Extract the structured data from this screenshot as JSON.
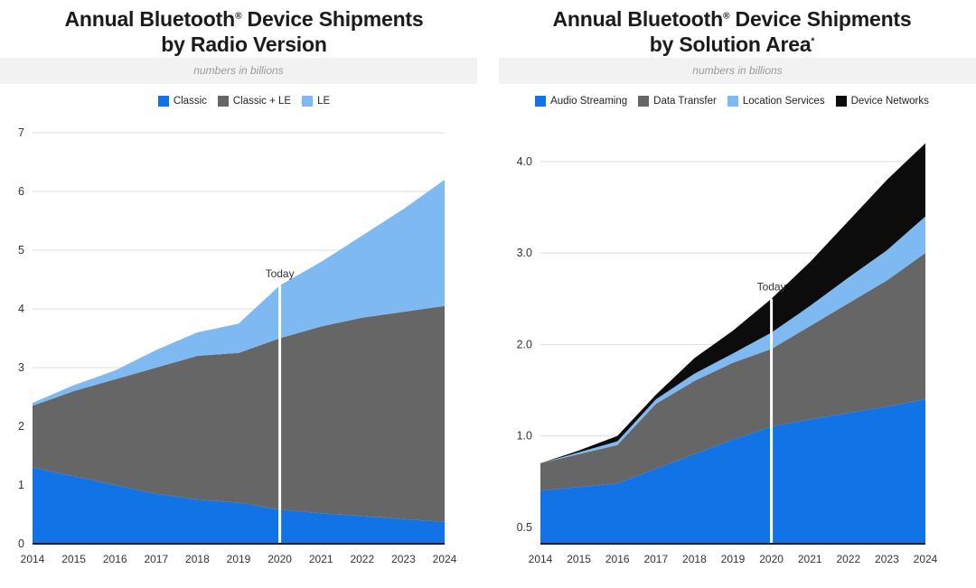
{
  "page": {
    "background": "#ffffff"
  },
  "colors": {
    "grid": "#dedede",
    "axis": "#1a1a1a",
    "tick_text": "#333333",
    "today_line": "#ffffff",
    "today_text": "#333333",
    "band_bg": "#f2f2f2",
    "title_text": "#1b1b1b",
    "subtitle_text": "#9a9a9a",
    "legend_text": "#222222"
  },
  "charts": [
    {
      "title": {
        "pre": "Annual Bluetooth",
        "sup": "®",
        "post": " Device Shipments",
        "line2_pre": "by Radio Version",
        "line2_sup": ""
      },
      "subtitle": "numbers in billions",
      "chart_data": {
        "type": "area",
        "stacked": true,
        "title": "Annual Bluetooth Device Shipments by Radio Version",
        "subtitle": "numbers in billions",
        "x": [
          2014,
          2015,
          2016,
          2017,
          2018,
          2019,
          2020,
          2021,
          2022,
          2023,
          2024
        ],
        "series": [
          {
            "name": "Classic",
            "color": "#1273e6",
            "values": [
              1.3,
              1.15,
              1.0,
              0.85,
              0.75,
              0.7,
              0.58,
              0.52,
              0.47,
              0.42,
              0.37
            ]
          },
          {
            "name": "Classic + LE",
            "color": "#666666",
            "values": [
              1.05,
              1.45,
              1.8,
              2.15,
              2.45,
              2.55,
              2.92,
              3.18,
              3.38,
              3.53,
              3.68
            ]
          },
          {
            "name": "LE",
            "color": "#7fb9f2",
            "values": [
              0.05,
              0.1,
              0.15,
              0.3,
              0.4,
              0.5,
              0.9,
              1.1,
              1.4,
              1.75,
              2.15
            ]
          }
        ],
        "yticks": [
          0,
          1,
          2,
          3,
          4,
          5,
          6,
          7
        ],
        "ytick_labels": [
          "0",
          "1",
          "2",
          "3",
          "4",
          "5",
          "6",
          "7"
        ],
        "axis": {
          "mode": "linear",
          "min": 0,
          "max": 7
        },
        "grid": true,
        "legend_position": "top",
        "today": {
          "year": 2020,
          "label": "Today"
        }
      }
    },
    {
      "title": {
        "pre": "Annual Bluetooth",
        "sup": "®",
        "post": " Device Shipments",
        "line2_pre": "by Solution Area",
        "line2_sup": "*"
      },
      "subtitle": "numbers in billions",
      "chart_data": {
        "type": "area",
        "stacked": true,
        "title": "Annual Bluetooth Device Shipments by Solution Area",
        "subtitle": "numbers in billions",
        "x": [
          2014,
          2015,
          2016,
          2017,
          2018,
          2019,
          2020,
          2021,
          2022,
          2023,
          2024
        ],
        "series": [
          {
            "name": "Audio Streaming",
            "color": "#1273e6",
            "values": [
              0.7,
              0.72,
              0.74,
              0.82,
              0.9,
              0.98,
              1.1,
              1.18,
              1.25,
              1.32,
              1.4
            ]
          },
          {
            "name": "Data Transfer",
            "color": "#666666",
            "values": [
              0.15,
              0.18,
              0.21,
              0.53,
              0.7,
              0.82,
              0.85,
              1.02,
              1.2,
              1.38,
              1.6
            ]
          },
          {
            "name": "Location Services",
            "color": "#7fb9f2",
            "values": [
              0.0,
              0.01,
              0.02,
              0.05,
              0.08,
              0.1,
              0.18,
              0.22,
              0.28,
              0.33,
              0.4
            ]
          },
          {
            "name": "Device Networks",
            "color": "#0c0c0c",
            "values": [
              0.0,
              0.01,
              0.03,
              0.05,
              0.17,
              0.25,
              0.37,
              0.48,
              0.62,
              0.77,
              0.8
            ]
          }
        ],
        "yticks": [
          0.5,
          1.0,
          2.0,
          3.0,
          4.0
        ],
        "ytick_labels": [
          "0.5",
          "1.0",
          "2.0",
          "3.0",
          "4.0"
        ],
        "axis": {
          "mode": "even-ticks",
          "baseline": 0.42,
          "first_frac": 0.04,
          "step_frac": 0.2225
        },
        "grid": true,
        "legend_position": "top",
        "today": {
          "year": 2020,
          "label": "Today"
        }
      }
    }
  ]
}
